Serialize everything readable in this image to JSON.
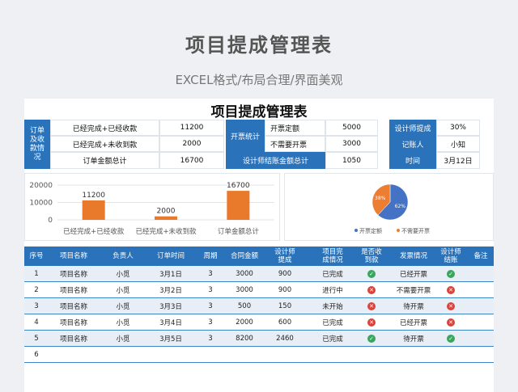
{
  "header": {
    "title": "项目提成管理表",
    "subtitle": "EXCEL格式/布局合理/界面美观"
  },
  "sheet": {
    "title": "项目提成管理表"
  },
  "summary": {
    "group1_label": "订单及收款情况",
    "rows": [
      {
        "label": "已经完成+已经收款",
        "value": "11200"
      },
      {
        "label": "已经完成+未收到款",
        "value": "2000"
      },
      {
        "label": "订单金额总计",
        "value": "16700"
      }
    ],
    "group2_label": "开票统计",
    "invoice": [
      {
        "label": "开票定额",
        "value": "5000"
      },
      {
        "label": "不需要开票",
        "value": "3000"
      }
    ],
    "designer_total_label": "设计师结账金额总计",
    "designer_total_value": "1050",
    "designer_comm_label": "设计师提成",
    "designer_comm_value": "30%",
    "bookkeeper_label": "记账人",
    "bookkeeper_value": "小知",
    "time_label": "时间",
    "time_value": "3月12日"
  },
  "chart_data": [
    {
      "type": "bar",
      "categories": [
        "已经完成+已经收款",
        "已经完成+未收到款",
        "订单金额总计"
      ],
      "values": [
        11200,
        2000,
        16700
      ],
      "data_labels": [
        "11200",
        "2000",
        "16700"
      ],
      "yticks": [
        "20000",
        "10000",
        "0"
      ],
      "ylim": [
        0,
        20000
      ],
      "color": "#e97a2b",
      "grid": true
    },
    {
      "type": "pie",
      "categories": [
        "开票定额",
        "不需要开票"
      ],
      "values": [
        62,
        38
      ],
      "data_labels": [
        "62%",
        "38%"
      ],
      "colors": [
        "#4472c4",
        "#ed7d31"
      ],
      "legend": "bottom"
    }
  ],
  "table": {
    "headers": [
      "序号",
      "项目名称",
      "负责人",
      "订单时间",
      "周期",
      "合同金额",
      "设计师提成",
      "项目完成情况",
      "是否收到款",
      "发票情况",
      "设计师结账",
      "备注"
    ],
    "rows": [
      {
        "no": "1",
        "name": "项目名称",
        "owner": "小觅",
        "date": "3月1日",
        "cycle": "3",
        "amount": "3000",
        "comm": "900",
        "status": "已完成",
        "paid": "yes",
        "invoice": "已经开票",
        "settled": "yes"
      },
      {
        "no": "2",
        "name": "项目名称",
        "owner": "小觅",
        "date": "3月2日",
        "cycle": "3",
        "amount": "3000",
        "comm": "900",
        "status": "进行中",
        "paid": "no",
        "invoice": "不需要开票",
        "settled": "no"
      },
      {
        "no": "3",
        "name": "项目名称",
        "owner": "小觅",
        "date": "3月3日",
        "cycle": "3",
        "amount": "500",
        "comm": "150",
        "status": "未开始",
        "paid": "no",
        "invoice": "待开票",
        "settled": "no"
      },
      {
        "no": "4",
        "name": "项目名称",
        "owner": "小觅",
        "date": "3月4日",
        "cycle": "3",
        "amount": "2000",
        "comm": "600",
        "status": "已完成",
        "paid": "no",
        "invoice": "已经开票",
        "settled": "no"
      },
      {
        "no": "5",
        "name": "项目名称",
        "owner": "小觅",
        "date": "3月5日",
        "cycle": "3",
        "amount": "8200",
        "comm": "2460",
        "status": "已完成",
        "paid": "yes",
        "invoice": "待开票",
        "settled": "yes"
      },
      {
        "no": "6",
        "name": "",
        "owner": "",
        "date": "",
        "cycle": "",
        "amount": "",
        "comm": "",
        "status": "",
        "paid": "",
        "invoice": "",
        "settled": ""
      }
    ]
  },
  "icons": {
    "yes": "check-circle-icon",
    "no": "x-circle-icon",
    "yes_color": "#3aa55c",
    "no_color": "#d9443c"
  }
}
